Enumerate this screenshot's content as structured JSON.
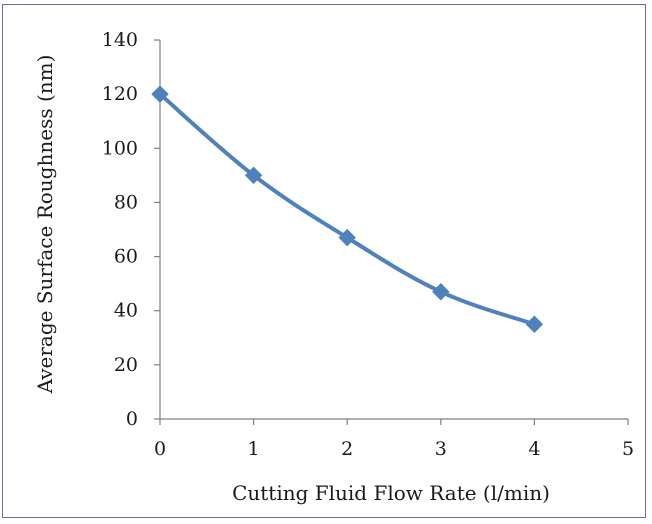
{
  "chart_data": {
    "type": "line",
    "title": "",
    "xlabel": "Cutting Fluid Flow Rate (l/min)",
    "ylabel": "Average Surface Roughness (nm)",
    "xlim": [
      0,
      5
    ],
    "ylim": [
      0,
      140
    ],
    "x_ticks": [
      "0",
      "1",
      "2",
      "3",
      "4",
      "5"
    ],
    "y_ticks": [
      "0",
      "20",
      "40",
      "60",
      "80",
      "100",
      "120",
      "140"
    ],
    "grid": false,
    "legend": "none",
    "series": [
      {
        "x": [
          0,
          1,
          2,
          3,
          4
        ],
        "values": [
          120,
          90,
          67,
          47,
          35
        ],
        "color": "#4f81bd",
        "marker": "diamond",
        "smooth": true
      }
    ]
  },
  "colors": {
    "series": "#4f81bd",
    "frame": "#8064a2",
    "axis": "#7f7f7f"
  }
}
